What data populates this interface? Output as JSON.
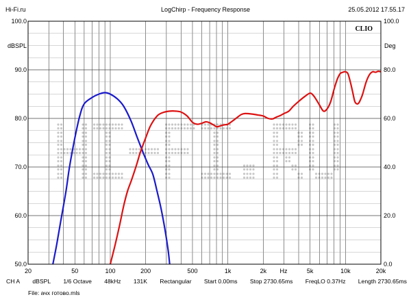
{
  "header": {
    "site": "Hi-Fi.ru",
    "title": "LogChirp - Frequency Response",
    "timestamp": "25.05.2012 17.55.17"
  },
  "badge": "CLIO",
  "watermark": "HI-FI.RU",
  "footer": {
    "items": [
      "CH A",
      "dBSPL",
      "1/6 Octave",
      "48kHz",
      "131K",
      "Rectangular",
      "Start 0.00ms",
      "Stop 2730.65ms",
      "FreqLO 0.37Hz",
      "Length 2730.65ms"
    ],
    "file": "File: ачх готово.mls"
  },
  "chart_data": {
    "type": "line",
    "title": "LogChirp - Frequency Response",
    "xscale": "log",
    "xlim": [
      20,
      20000
    ],
    "ylim": [
      50,
      100
    ],
    "y2lim": [
      0,
      100
    ],
    "ylabel": "dBSPL",
    "y2label": "Deg",
    "xunit": "Hz",
    "grid": true,
    "x_ticks": [
      {
        "value": 20,
        "label": "20"
      },
      {
        "value": 50,
        "label": "50"
      },
      {
        "value": 100,
        "label": "100"
      },
      {
        "value": 200,
        "label": "200"
      },
      {
        "value": 500,
        "label": "500"
      },
      {
        "value": 1000,
        "label": "1k"
      },
      {
        "value": 2000,
        "label": "2k"
      },
      {
        "value": 5000,
        "label": "5k"
      },
      {
        "value": 10000,
        "label": "10k"
      },
      {
        "value": 20000,
        "label": "20k"
      }
    ],
    "y_ticks": [
      {
        "value": 100,
        "label": "100.0"
      },
      {
        "value": 90,
        "label": "90.0"
      },
      {
        "value": 80,
        "label": "80.0"
      },
      {
        "value": 70,
        "label": "70.0"
      },
      {
        "value": 60,
        "label": "60.0"
      },
      {
        "value": 50,
        "label": "50.0"
      }
    ],
    "y2_ticks": [
      {
        "value": 100,
        "label": "100.0"
      },
      {
        "value": 80,
        "label": "80.0"
      },
      {
        "value": 60,
        "label": "60.0"
      },
      {
        "value": 40,
        "label": "40.0"
      },
      {
        "value": 20,
        "label": "20.0"
      },
      {
        "value": 0,
        "label": "0.0"
      }
    ],
    "series": [
      {
        "color": "#1a1acc",
        "x": [
          32.5,
          35,
          38,
          42,
          45,
          50,
          55,
          60,
          70,
          80,
          90,
          100,
          115,
          130,
          150,
          170,
          190,
          210,
          230,
          250,
          270,
          290,
          310,
          320
        ],
        "y": [
          50,
          54,
          59,
          65,
          70,
          76,
          80.5,
          83,
          84.3,
          85,
          85.3,
          85,
          84,
          82.5,
          79.5,
          76,
          73,
          70.5,
          68.5,
          65,
          61.5,
          57.5,
          53,
          50
        ]
      },
      {
        "color": "#dd1111",
        "x": [
          100,
          110,
          120,
          130,
          140,
          150,
          160,
          170,
          180,
          200,
          220,
          250,
          280,
          320,
          360,
          400,
          450,
          500,
          550,
          600,
          650,
          700,
          750,
          800,
          850,
          900,
          950,
          1000,
          1100,
          1200,
          1300,
          1400,
          1600,
          1800,
          2000,
          2200,
          2400,
          2600,
          2800,
          3000,
          3300,
          3600,
          4000,
          4500,
          5000,
          5300,
          5600,
          6000,
          6500,
          7000,
          7500,
          8000,
          8500,
          9000,
          9500,
          10000,
          10500,
          11000,
          11500,
          12000,
          12500,
          13000,
          13500,
          14000,
          15000,
          16000,
          17000,
          18000,
          19000,
          20000
        ],
        "y": [
          50,
          54,
          58,
          62,
          65,
          67,
          69,
          71,
          73,
          76,
          78.5,
          80.5,
          81.2,
          81.5,
          81.5,
          81.3,
          80.5,
          79.2,
          78.8,
          79,
          79.3,
          79.1,
          78.7,
          78.3,
          78.4,
          78.6,
          78.7,
          78.8,
          79.5,
          80.2,
          80.8,
          81,
          80.9,
          80.7,
          80.5,
          80,
          79.9,
          80.3,
          80.6,
          81,
          81.5,
          82.5,
          83.5,
          84.5,
          85.2,
          84.8,
          84,
          82.8,
          81.5,
          82,
          83.5,
          86,
          88,
          89.2,
          89.5,
          89.6,
          89.2,
          87.5,
          85.5,
          83.5,
          83,
          83.2,
          84,
          85,
          87.5,
          89,
          89.6,
          89.5,
          89.7,
          89.6
        ]
      }
    ]
  }
}
